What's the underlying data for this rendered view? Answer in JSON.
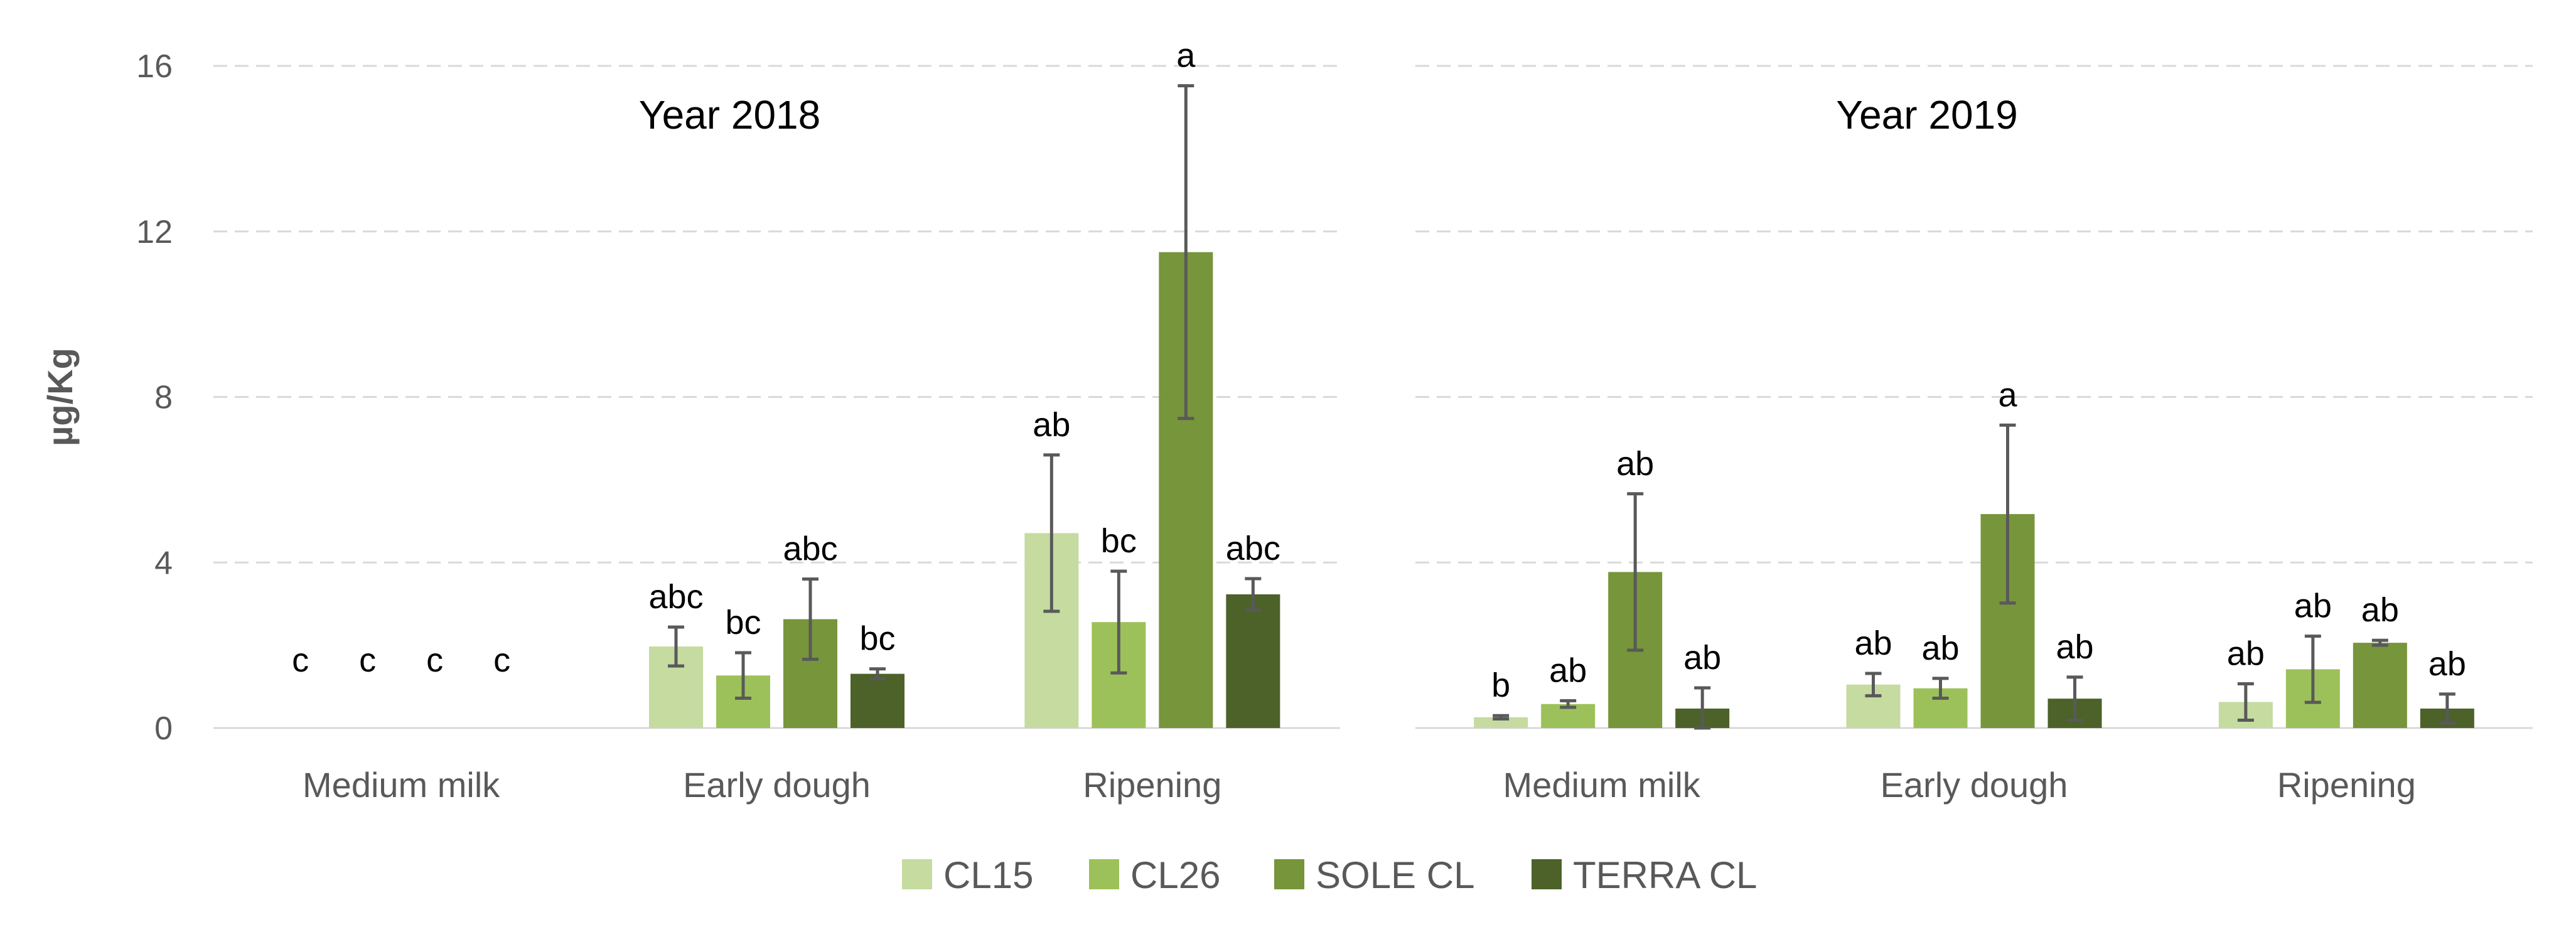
{
  "chart_data": {
    "type": "bar",
    "ylabel": "µg/Kg",
    "ylim": [
      0,
      16
    ],
    "yticks": [
      0,
      4,
      8,
      12,
      16
    ],
    "grid": true,
    "legend_position": "bottom",
    "categories": [
      "Medium milk",
      "Early dough",
      "Ripening"
    ],
    "series_names": [
      "CL15",
      "CL26",
      "SOLE CL",
      "TERRA CL"
    ],
    "colors": [
      "#c5dba0",
      "#9dc15a",
      "#77953a",
      "#4c6228"
    ],
    "panels": [
      {
        "title": "Year 2018",
        "groups": [
          {
            "category": "Medium milk",
            "values": [
              0,
              0,
              0,
              0
            ],
            "errors": [
              0,
              0,
              0,
              0
            ],
            "labels": [
              "c",
              "c",
              "c",
              "c"
            ]
          },
          {
            "category": "Early dough",
            "values": [
              1.97,
              1.27,
              2.63,
              1.31
            ],
            "errors": [
              0.47,
              0.55,
              0.97,
              0.12
            ],
            "labels": [
              "abc",
              "bc",
              "abc",
              "bc"
            ]
          },
          {
            "category": "Ripening",
            "values": [
              4.71,
              2.56,
              11.5,
              3.23
            ],
            "errors": [
              1.89,
              1.23,
              4.02,
              0.38
            ],
            "labels": [
              "ab",
              "bc",
              "a",
              "abc"
            ]
          }
        ]
      },
      {
        "title": "Year 2019",
        "groups": [
          {
            "category": "Medium milk",
            "values": [
              0.26,
              0.58,
              3.77,
              0.47
            ],
            "errors": [
              0.04,
              0.08,
              1.89,
              0.5
            ],
            "labels": [
              "b",
              "ab",
              "ab",
              "ab"
            ]
          },
          {
            "category": "Early dough",
            "values": [
              1.05,
              0.96,
              5.17,
              0.71
            ],
            "errors": [
              0.27,
              0.24,
              2.15,
              0.52
            ],
            "labels": [
              "ab",
              "ab",
              "a",
              "ab"
            ]
          },
          {
            "category": "Ripening",
            "values": [
              0.63,
              1.42,
              2.06,
              0.47
            ],
            "errors": [
              0.44,
              0.8,
              0.06,
              0.35
            ],
            "labels": [
              "ab",
              "ab",
              "ab",
              "ab"
            ]
          }
        ]
      }
    ]
  }
}
